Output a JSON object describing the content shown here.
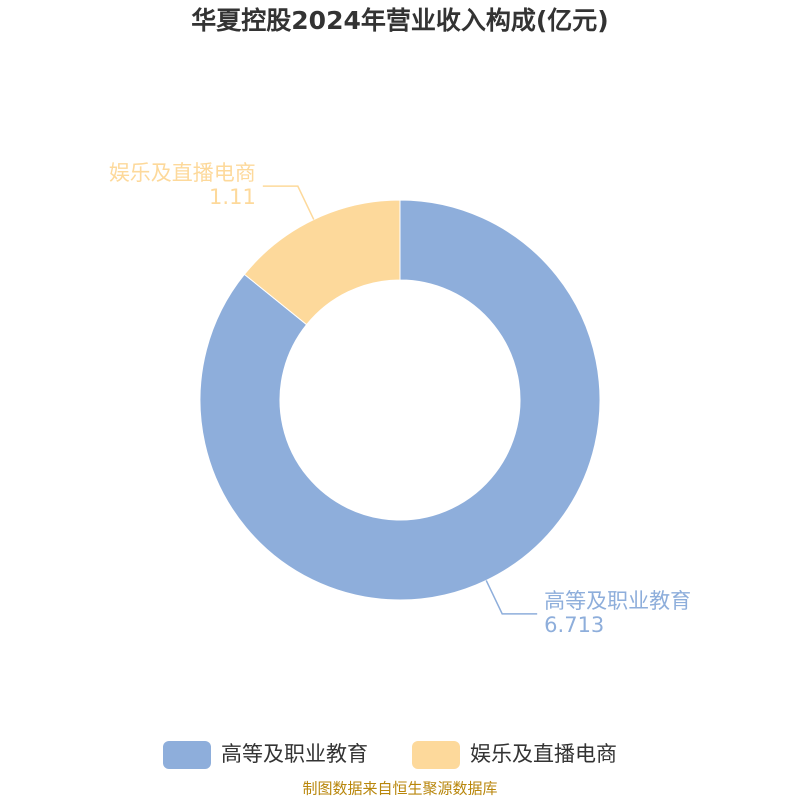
{
  "chart_data": {
    "type": "donut",
    "title": "华夏控股2024年营业收入构成(亿元)",
    "categories": [
      "高等及职业教育",
      "娱乐及直播电商"
    ],
    "values": [
      6.713,
      1.11
    ],
    "colors": [
      "#8eaedb",
      "#fdd99b"
    ],
    "source": "制图数据来自恒生聚源数据库"
  }
}
